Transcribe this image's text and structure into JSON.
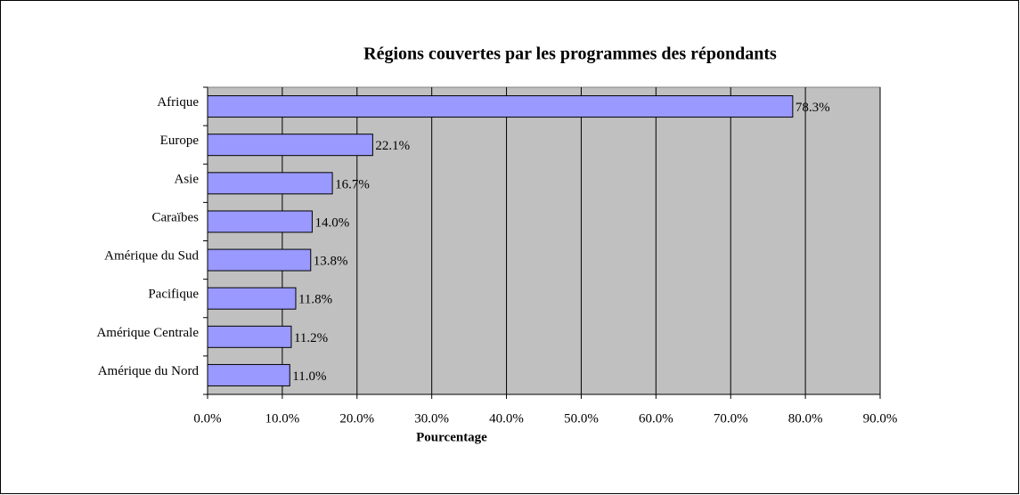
{
  "chart_data": {
    "type": "hbar",
    "title": "Régions couvertes par les programmes des répondants",
    "x_label": "Pourcentage",
    "categories": [
      "Afrique",
      "Europe",
      "Asie",
      "Caraïbes",
      "Amérique du Sud",
      "Pacifique",
      "Amérique Centrale",
      "Amérique du Nord"
    ],
    "values": [
      78.3,
      22.1,
      16.7,
      14.0,
      13.8,
      11.8,
      11.2,
      11.0
    ],
    "value_labels": [
      "78.3%",
      "22.1%",
      "16.7%",
      "14.0%",
      "13.8%",
      "11.8%",
      "11.2%",
      "11.0%"
    ],
    "color": "#9999ff",
    "xlim": [
      0,
      90
    ],
    "xticks": [
      {
        "value": 0,
        "label": "0.0%"
      },
      {
        "value": 10,
        "label": "10.0%"
      },
      {
        "value": 20,
        "label": "20.0%"
      },
      {
        "value": 30,
        "label": "30.0%"
      },
      {
        "value": 40,
        "label": "40.0%"
      },
      {
        "value": 50,
        "label": "50.0%"
      },
      {
        "value": 60,
        "label": "60.0%"
      },
      {
        "value": 70,
        "label": "70.0%"
      },
      {
        "value": 80,
        "label": "80.0%"
      },
      {
        "value": 90,
        "label": "90.0%"
      }
    ],
    "grid": true
  }
}
